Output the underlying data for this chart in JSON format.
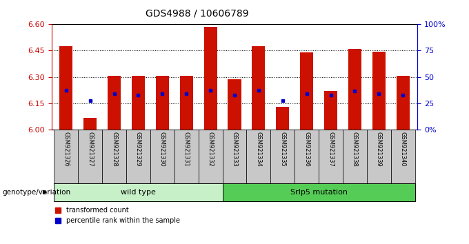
{
  "title": "GDS4988 / 10606789",
  "samples": [
    "GSM921326",
    "GSM921327",
    "GSM921328",
    "GSM921329",
    "GSM921330",
    "GSM921331",
    "GSM921332",
    "GSM921333",
    "GSM921334",
    "GSM921335",
    "GSM921336",
    "GSM921337",
    "GSM921338",
    "GSM921339",
    "GSM921340"
  ],
  "bar_tops": [
    6.475,
    6.065,
    6.305,
    6.305,
    6.305,
    6.305,
    6.585,
    6.285,
    6.475,
    6.13,
    6.44,
    6.22,
    6.46,
    6.445,
    6.305
  ],
  "blue_vals": [
    6.225,
    6.165,
    6.205,
    6.195,
    6.205,
    6.205,
    6.225,
    6.195,
    6.225,
    6.165,
    6.205,
    6.195,
    6.22,
    6.205,
    6.195
  ],
  "bar_base": 6.0,
  "ylim_left": [
    6.0,
    6.6
  ],
  "ylim_right": [
    0,
    100
  ],
  "yticks_left": [
    6.0,
    6.15,
    6.3,
    6.45,
    6.6
  ],
  "yticks_right": [
    0,
    25,
    50,
    75,
    100
  ],
  "ytick_right_labels": [
    "0%",
    "25",
    "50",
    "75",
    "100%"
  ],
  "groups": [
    {
      "label": "wild type",
      "start": 0,
      "end": 7,
      "color": "#c8f0c8"
    },
    {
      "label": "Srlp5 mutation",
      "start": 7,
      "end": 15,
      "color": "#55cc55"
    }
  ],
  "bar_color": "#cc1100",
  "blue_color": "#0000cc",
  "sample_box_color": "#c8c8c8",
  "legend_items": [
    "transformed count",
    "percentile rank within the sample"
  ],
  "genotype_label": "genotype/variation",
  "left_axis_color": "#cc0000",
  "right_axis_color": "#0000cc",
  "title_fontsize": 10,
  "tick_fontsize": 8,
  "sample_fontsize": 6,
  "legend_fontsize": 7
}
